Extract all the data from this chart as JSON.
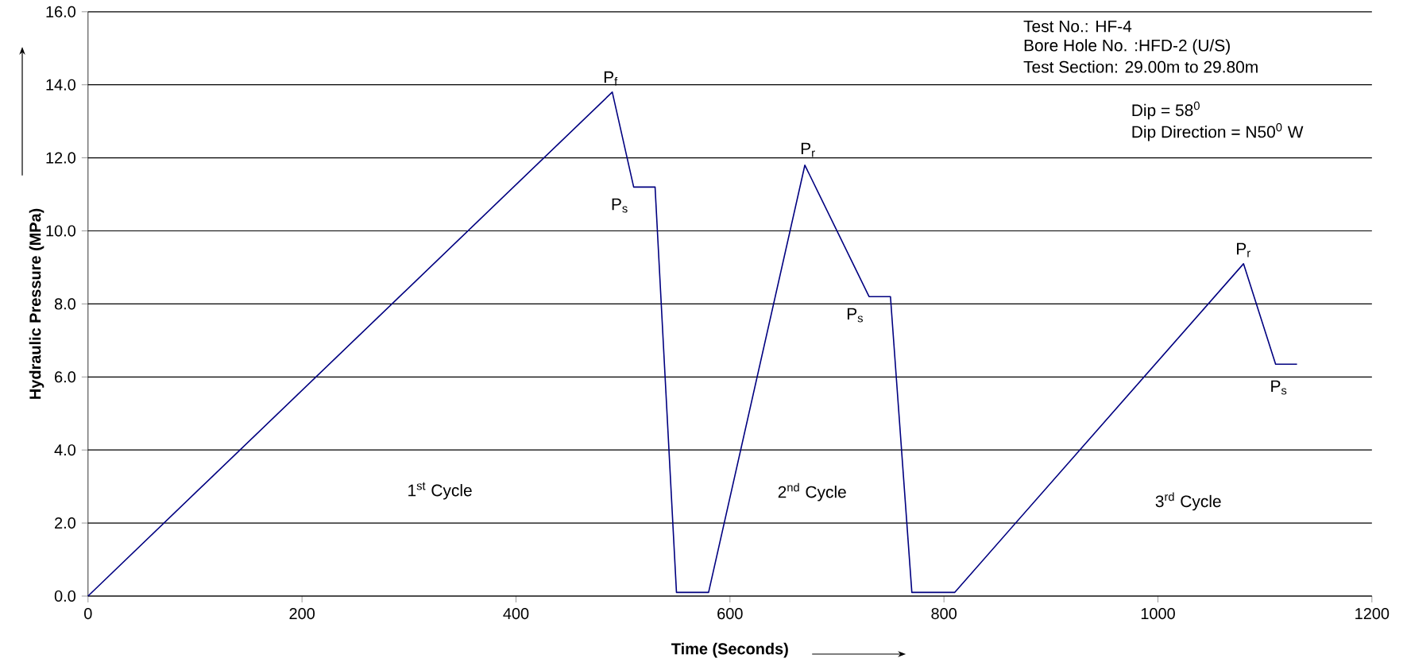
{
  "chart_data": {
    "type": "line",
    "xlabel": "Time (Seconds)",
    "ylabel": "Hydraulic Pressure (MPa)",
    "x": [
      0,
      490,
      510,
      530,
      550,
      580,
      670,
      730,
      750,
      770,
      810,
      1080,
      1110,
      1130
    ],
    "series": [
      {
        "color": "#000080",
        "values": [
          0,
          13.8,
          11.2,
          11.2,
          0.1,
          0.1,
          11.8,
          8.2,
          8.2,
          0.1,
          0.1,
          9.1,
          6.35,
          6.35
        ]
      }
    ],
    "xlim": [
      0,
      1200
    ],
    "xticks": [
      0,
      200,
      400,
      600,
      800,
      1000,
      1200
    ],
    "ylim": [
      0,
      16
    ],
    "yticks": [
      {
        "value": 0,
        "label": "0.0"
      },
      {
        "value": 2,
        "label": "2.0"
      },
      {
        "value": 4,
        "label": "4.0"
      },
      {
        "value": 6,
        "label": "6.0"
      },
      {
        "value": 8,
        "label": "8.0"
      },
      {
        "value": 10,
        "label": "10.0"
      },
      {
        "value": 12,
        "label": "12.0"
      },
      {
        "value": 14,
        "label": "14.0"
      },
      {
        "value": 16,
        "label": "16.0"
      }
    ],
    "grid": "y",
    "marker": "none",
    "line_style": "solid",
    "annotations": [
      {
        "text": "P$_{f}$",
        "x": 490,
        "y": 13.8
      },
      {
        "text": "P$_{s}$",
        "x": 510,
        "y": 11.2
      },
      {
        "text": "P$_{r}$",
        "x": 670,
        "y": 11.8
      },
      {
        "text": "P$_{s}$",
        "x": 730,
        "y": 8.2
      },
      {
        "text": "P$_{r}$",
        "x": 1080,
        "y": 9.1
      },
      {
        "text": "P$_{s}$",
        "x": 1110,
        "y": 6.35
      },
      "1$^{st}$ Cycle",
      "2$^{nd}$ Cycle",
      "3$^{rd}$ Cycle",
      "Test No.: HF-4",
      "Bore Hole No. :HFD-2 (U/S)",
      "Test Section: 29.00m to 29.80m",
      "Dip = 58$^{0}$",
      "Dip Direction = N50$^{0}$ W"
    ]
  }
}
